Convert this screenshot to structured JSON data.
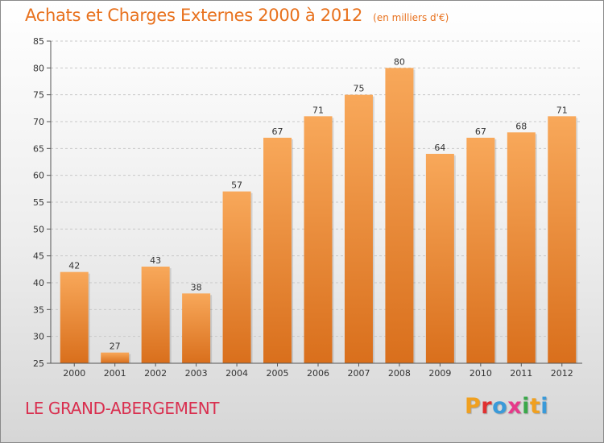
{
  "header": {
    "title": "Achats et Charges Externes 2000 à 2012",
    "subtitle": "(en milliers d'€)"
  },
  "footer": {
    "commune": "LE GRAND-ABERGEMENT",
    "logo_letters": [
      "P",
      "r",
      "o",
      "x",
      "i",
      "t",
      "i"
    ]
  },
  "colors": {
    "title": "#e8711d",
    "commune": "#d92f4f",
    "bar_top": "#f8a85a",
    "bar_bottom": "#d96f1c",
    "logo": [
      "#f0a020",
      "#e03030",
      "#3a9ad9",
      "#e63a8a",
      "#3aa84a",
      "#f0a020",
      "#3a9ad9"
    ]
  },
  "chart_data": {
    "type": "bar",
    "categories": [
      "2000",
      "2001",
      "2002",
      "2003",
      "2004",
      "2005",
      "2006",
      "2007",
      "2008",
      "2009",
      "2010",
      "2011",
      "2012"
    ],
    "values": [
      42,
      27,
      43,
      38,
      57,
      67,
      71,
      75,
      80,
      64,
      67,
      68,
      71
    ],
    "value_labels": [
      "42",
      "27",
      "43",
      "38",
      "57",
      "67",
      "71",
      "75",
      "80",
      "64",
      "67",
      "68",
      "71"
    ],
    "ylim": [
      25,
      85
    ],
    "yticks": [
      25,
      30,
      35,
      40,
      45,
      50,
      55,
      60,
      65,
      70,
      75,
      80,
      85
    ],
    "ytick_labels": [
      "25",
      "30",
      "35",
      "40",
      "45",
      "50",
      "55",
      "60",
      "65",
      "70",
      "75",
      "80",
      "85"
    ],
    "grid": true,
    "legend": "none"
  }
}
